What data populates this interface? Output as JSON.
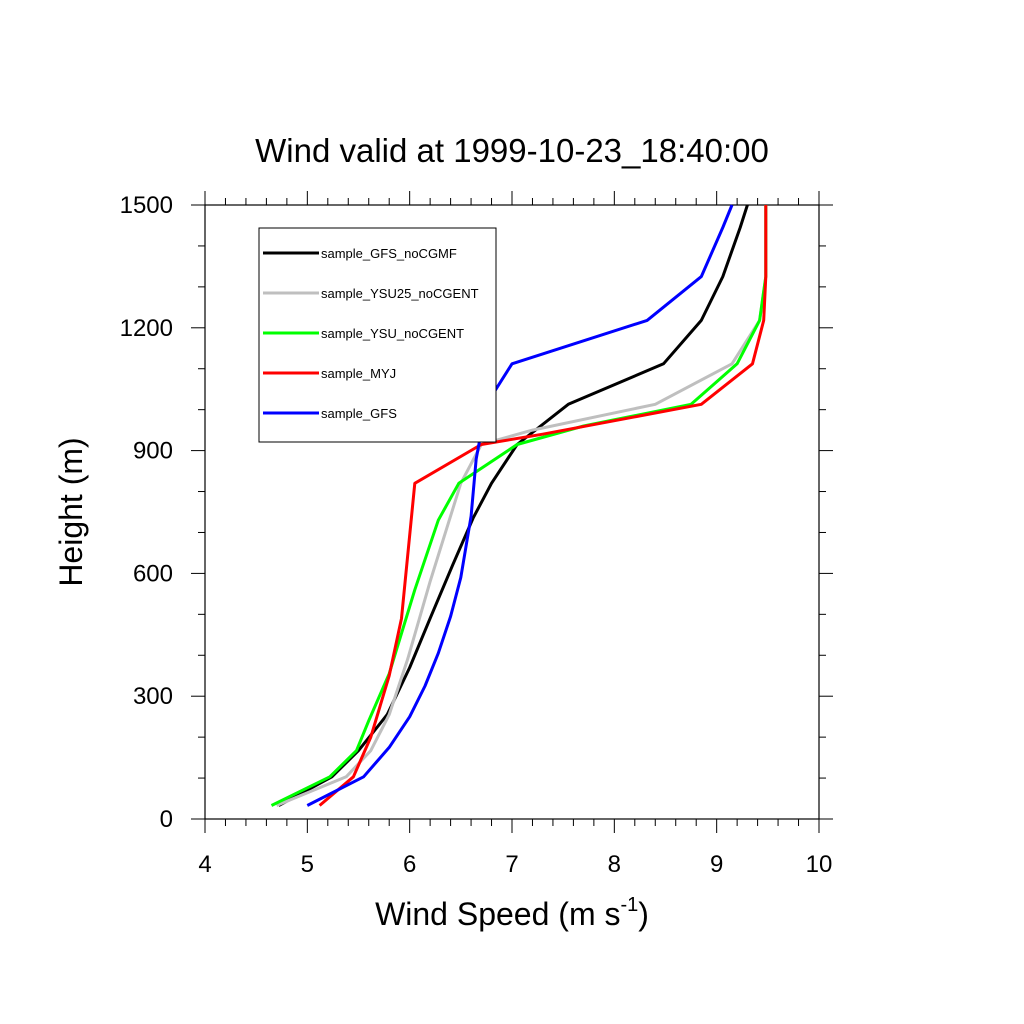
{
  "chart_data": {
    "type": "line",
    "title": "Wind valid at 1999-10-23_18:40:00",
    "xlabel": "Wind Speed (m s",
    "xlabel_sup": "-1",
    "xlabel_end": ")",
    "ylabel": "Height (m)",
    "xlim": [
      4,
      10
    ],
    "ylim": [
      0,
      1500
    ],
    "xticks": [
      "4",
      "5",
      "6",
      "7",
      "8",
      "9",
      "10"
    ],
    "yticks": [
      "0",
      "300",
      "600",
      "900",
      "1200",
      "1500"
    ],
    "grid": false,
    "legend_position": "top-left",
    "series": [
      {
        "name": "sample_GFS_noCGMF",
        "color": "#000000",
        "points": [
          [
            4.72,
            33
          ],
          [
            5.24,
            103
          ],
          [
            5.5,
            167
          ],
          [
            5.78,
            255
          ],
          [
            6.0,
            370
          ],
          [
            6.2,
            490
          ],
          [
            6.42,
            620
          ],
          [
            6.62,
            735
          ],
          [
            6.8,
            820
          ],
          [
            7.05,
            915
          ],
          [
            7.55,
            1013
          ],
          [
            8.48,
            1112
          ],
          [
            8.85,
            1218
          ],
          [
            9.06,
            1325
          ],
          [
            9.23,
            1445
          ],
          [
            9.3,
            1500
          ]
        ]
      },
      {
        "name": "sample_YSU25_noCGENT",
        "color": "#bfbfbf",
        "points": [
          [
            4.7,
            33
          ],
          [
            5.38,
            103
          ],
          [
            5.62,
            167
          ],
          [
            5.8,
            255
          ],
          [
            5.98,
            390
          ],
          [
            6.2,
            580
          ],
          [
            6.5,
            820
          ],
          [
            6.7,
            915
          ],
          [
            7.2,
            950
          ],
          [
            8.4,
            1013
          ],
          [
            9.15,
            1112
          ],
          [
            9.42,
            1218
          ],
          [
            9.48,
            1325
          ],
          [
            9.48,
            1500
          ]
        ]
      },
      {
        "name": "sample_YSU_noCGENT",
        "color": "#00ff00",
        "points": [
          [
            4.65,
            33
          ],
          [
            5.22,
            103
          ],
          [
            5.48,
            167
          ],
          [
            5.6,
            240
          ],
          [
            5.8,
            355
          ],
          [
            6.05,
            560
          ],
          [
            6.28,
            730
          ],
          [
            6.48,
            820
          ],
          [
            7.05,
            915
          ],
          [
            7.7,
            960
          ],
          [
            8.75,
            1013
          ],
          [
            9.2,
            1112
          ],
          [
            9.42,
            1218
          ],
          [
            9.48,
            1325
          ],
          [
            9.48,
            1500
          ]
        ]
      },
      {
        "name": "sample_MYJ",
        "color": "#ff0000",
        "points": [
          [
            5.12,
            33
          ],
          [
            5.45,
            103
          ],
          [
            5.62,
            200
          ],
          [
            5.8,
            350
          ],
          [
            5.92,
            490
          ],
          [
            6.05,
            820
          ],
          [
            6.7,
            915
          ],
          [
            7.3,
            940
          ],
          [
            8.85,
            1013
          ],
          [
            9.35,
            1112
          ],
          [
            9.46,
            1218
          ],
          [
            9.48,
            1325
          ],
          [
            9.48,
            1500
          ]
        ]
      },
      {
        "name": "sample_GFS",
        "color": "#0000ff",
        "points": [
          [
            5.0,
            33
          ],
          [
            5.55,
            103
          ],
          [
            5.8,
            175
          ],
          [
            6.0,
            250
          ],
          [
            6.15,
            325
          ],
          [
            6.28,
            405
          ],
          [
            6.4,
            495
          ],
          [
            6.5,
            590
          ],
          [
            6.6,
            740
          ],
          [
            6.65,
            880
          ],
          [
            6.75,
            1013
          ],
          [
            7.0,
            1112
          ],
          [
            8.32,
            1218
          ],
          [
            8.85,
            1325
          ],
          [
            9.06,
            1445
          ],
          [
            9.15,
            1500
          ]
        ]
      }
    ]
  }
}
